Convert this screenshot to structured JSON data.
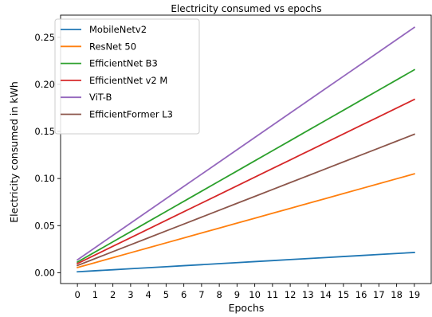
{
  "chart_data": {
    "type": "line",
    "title": "Electricity consumed vs epochs",
    "xlabel": "Epochs",
    "ylabel": "Electricity consumed in kWh",
    "xlim": [
      -0.95,
      19.95
    ],
    "ylim": [
      -0.0115,
      0.2735
    ],
    "xticks": [
      0,
      1,
      2,
      3,
      4,
      5,
      6,
      7,
      8,
      9,
      10,
      11,
      12,
      13,
      14,
      15,
      16,
      17,
      18,
      19
    ],
    "yticks": [
      0.0,
      0.05,
      0.1,
      0.15,
      0.2,
      0.25
    ],
    "ytick_labels": [
      "0.00",
      "0.05",
      "0.10",
      "0.15",
      "0.20",
      "0.25"
    ],
    "grid": false,
    "legend_position": "top-left",
    "x": [
      0,
      1,
      2,
      3,
      4,
      5,
      6,
      7,
      8,
      9,
      10,
      11,
      12,
      13,
      14,
      15,
      16,
      17,
      18,
      19
    ],
    "series": [
      {
        "name": "MobileNetv2",
        "color": "#1f77b4",
        "start": 0.001,
        "end": 0.0215
      },
      {
        "name": "ResNet 50",
        "color": "#ff7f0e",
        "start": 0.0055,
        "end": 0.105
      },
      {
        "name": "EfficientNet B3",
        "color": "#2ca02c",
        "start": 0.0113,
        "end": 0.2155
      },
      {
        "name": "EfficientNet v2 M",
        "color": "#d62728",
        "start": 0.0097,
        "end": 0.184
      },
      {
        "name": "ViT-B",
        "color": "#9467bd",
        "start": 0.0137,
        "end": 0.2605
      },
      {
        "name": "EfficientFormer L3",
        "color": "#8c564b",
        "start": 0.0077,
        "end": 0.147
      }
    ]
  }
}
